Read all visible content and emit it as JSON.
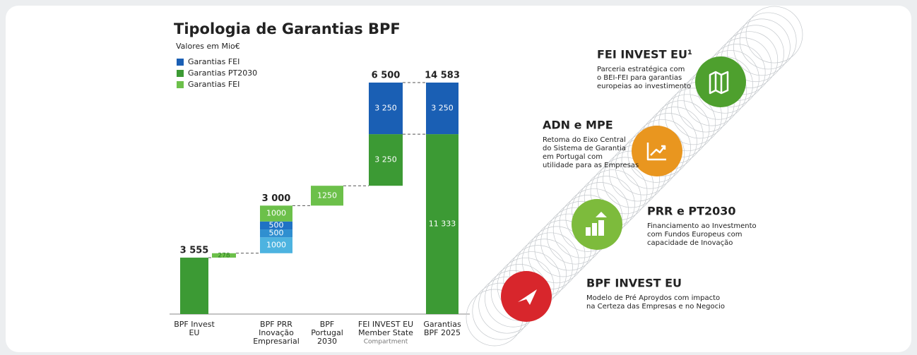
{
  "chart_data": {
    "type": "waterfall",
    "title": "Tipologia de Garantias BPF",
    "subtitle": "Valores em Mio€",
    "legend": [
      {
        "name": "Garantias FEI",
        "color": "#1a5fb4"
      },
      {
        "name": "Garantias PT2030",
        "color": "#3c9a34"
      },
      {
        "name": "Garantias FEI",
        "color": "#6cc04a"
      }
    ],
    "bars": [
      {
        "category": [
          "BPF Invest",
          "EU"
        ],
        "total": 3555,
        "total_label": "3 555",
        "segments": [
          {
            "value": 3555,
            "color": "#3c9a34"
          }
        ]
      },
      {
        "category": null,
        "segments": [
          {
            "value": 278,
            "color": "#6cc04a"
          }
        ]
      },
      {
        "category": [
          "BPF PRR",
          "Inovação",
          "Empresarial"
        ],
        "total": 3000,
        "total_label": "3 000",
        "segments": [
          {
            "value": 1000,
            "color": "#4db3e0"
          },
          {
            "value": 500,
            "color": "#2f8fd0"
          },
          {
            "value": 500,
            "color": "#1f72c4"
          },
          {
            "value": 1000,
            "color": "#6cc04a"
          }
        ]
      },
      {
        "category": [
          "BPF",
          "Portugal",
          "2030"
        ],
        "segments": [
          {
            "value": 1250,
            "color": "#6cc04a"
          }
        ]
      },
      {
        "category": [
          "FEI INVEST EU",
          "Member State",
          "Compartment"
        ],
        "total": 6500,
        "total_label": "6 500",
        "segments": [
          {
            "value": 3250,
            "label": "3 250",
            "color": "#3c9a34"
          },
          {
            "value": 3250,
            "label": "3 250",
            "color": "#1a5fb4"
          }
        ]
      },
      {
        "category": [
          "Garantias",
          "BPF 2025"
        ],
        "total": 14583,
        "total_label": "14 583",
        "segments": [
          {
            "value": 11333,
            "label": "11 333",
            "color": "#3c9a34"
          },
          {
            "value": 3250,
            "label": "3 250",
            "color": "#1a5fb4"
          }
        ]
      }
    ]
  },
  "steps": [
    {
      "title": "FEI INVEST EU¹",
      "lines": [
        "Parceria estratégica com",
        "o BEI-FEI para garantias",
        "europeias ao investimento"
      ]
    },
    {
      "title": "ADN e MPE",
      "lines": [
        "Retoma do Eixo Central",
        "do Sistema de Garantia",
        "em Portugal com",
        "utilidade para as Empresas"
      ]
    },
    {
      "title": "PRR e PT2030",
      "lines": [
        "Financiamento ao Investmento",
        "com Fundos Europeus com",
        "capacidade de Inovação"
      ]
    },
    {
      "title": "BPF INVEST EU",
      "lines": [
        "Modelo de Pré Aproydos com impacto",
        "na Certeza das Empresas e no Negocio"
      ]
    }
  ]
}
